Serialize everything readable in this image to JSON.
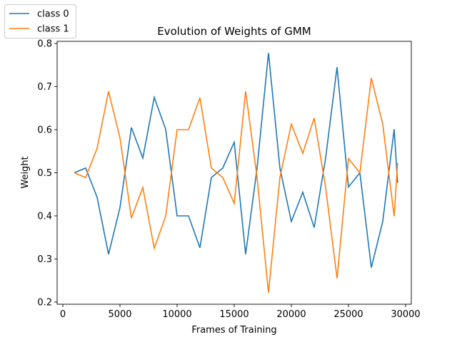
{
  "chart_data": {
    "type": "line",
    "title": "Evolution of Weights of GMM",
    "xlabel": "Frames of Training",
    "ylabel": "Weight",
    "xlim": [
      -500,
      30500
    ],
    "ylim": [
      0.195,
      0.805
    ],
    "xticks": [
      0,
      5000,
      10000,
      15000,
      20000,
      25000,
      30000
    ],
    "yticks": [
      0.2,
      0.3,
      0.4,
      0.5,
      0.6,
      0.7,
      0.8
    ],
    "xtick_labels": [
      "0",
      "5000",
      "10000",
      "15000",
      "20000",
      "25000",
      "30000"
    ],
    "ytick_labels": [
      "0.2",
      "0.3",
      "0.4",
      "0.5",
      "0.6",
      "0.7",
      "0.8"
    ],
    "grid": false,
    "legend": "outside-top-left",
    "x": [
      1000,
      2000,
      3000,
      4000,
      5000,
      6000,
      7000,
      8000,
      9000,
      10000,
      11000,
      12000,
      13000,
      14000,
      15000,
      16000,
      17000,
      18000,
      19000,
      20000,
      21000,
      22000,
      23000,
      24000,
      25000,
      26000,
      27000,
      28000,
      29000,
      29300
    ],
    "series": [
      {
        "name": "class 0",
        "color": "#1f77b4",
        "values": [
          0.5,
          0.511,
          0.443,
          0.311,
          0.419,
          0.605,
          0.534,
          0.675,
          0.601,
          0.4,
          0.4,
          0.326,
          0.489,
          0.511,
          0.571,
          0.311,
          0.511,
          0.778,
          0.511,
          0.387,
          0.455,
          0.373,
          0.534,
          0.745,
          0.467,
          0.5,
          0.28,
          0.387,
          0.601,
          0.477
        ]
      },
      {
        "name": "class 1",
        "color": "#ff7f0e",
        "values": [
          0.5,
          0.489,
          0.557,
          0.689,
          0.581,
          0.395,
          0.466,
          0.325,
          0.399,
          0.6,
          0.6,
          0.674,
          0.511,
          0.489,
          0.429,
          0.689,
          0.489,
          0.222,
          0.489,
          0.613,
          0.545,
          0.627,
          0.466,
          0.255,
          0.533,
          0.5,
          0.72,
          0.613,
          0.399,
          0.523
        ]
      }
    ]
  }
}
